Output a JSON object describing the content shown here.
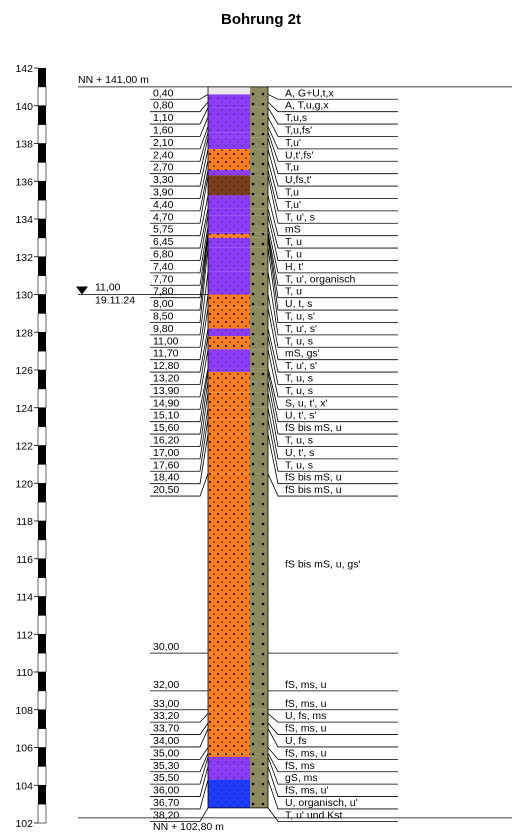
{
  "title": "Bohrung 2t",
  "top": {
    "value": 141,
    "label": "NN + 141,00 m"
  },
  "bottom_label": "NN + 102,80 m",
  "axis": {
    "lim": [
      102,
      142
    ],
    "ticks": [
      102,
      104,
      106,
      108,
      110,
      112,
      114,
      116,
      118,
      120,
      122,
      124,
      126,
      128,
      130,
      132,
      134,
      136,
      138,
      140,
      142
    ]
  },
  "water_level": {
    "depth": {
      "value": 11,
      "label": "11,00"
    },
    "date": "19.11.24"
  },
  "layers": [
    {
      "bottom": {
        "value": 0.4,
        "label": "0,40"
      },
      "description": "A, G+U,t,x",
      "color": "#e8e8e8"
    },
    {
      "bottom": {
        "value": 0.8,
        "label": "0,80"
      },
      "description": "A, T,u,g,x",
      "color": "#8b3cf7"
    },
    {
      "bottom": {
        "value": 1.1,
        "label": "1,10"
      },
      "description": "T,u,s",
      "color": "#8b3cf7"
    },
    {
      "bottom": {
        "value": 1.6,
        "label": "1,60"
      },
      "description": "T,u,fs'",
      "color": "#8b3cf7"
    },
    {
      "bottom": {
        "value": 2.1,
        "label": "2,10"
      },
      "description": "T,u'",
      "color": "#8b3cf7"
    },
    {
      "bottom": {
        "value": 2.4,
        "label": "2,40"
      },
      "description": "U,t',fs'",
      "color": "#8b3cf7"
    },
    {
      "bottom": {
        "value": 2.7,
        "label": "2,70"
      },
      "description": "T,u",
      "color": "#8b3cf7"
    },
    {
      "bottom": {
        "value": 3.3,
        "label": "3,30"
      },
      "description": "U,fs,t'",
      "color": "#8b3cf7"
    },
    {
      "bottom": {
        "value": 3.9,
        "label": "3,90"
      },
      "description": "T,u",
      "color": "#ff7f1e"
    },
    {
      "bottom": {
        "value": 4.4,
        "label": "4,40"
      },
      "description": "T,u'",
      "color": "#ff7f1e"
    },
    {
      "bottom": {
        "value": 4.7,
        "label": "4,70"
      },
      "description": "T, u', s",
      "color": "#8b3cf7"
    },
    {
      "bottom": {
        "value": 5.75,
        "label": "5,75"
      },
      "description": "mS",
      "color": "#7a3d1c"
    },
    {
      "bottom": {
        "value": 6.45,
        "label": "6,45"
      },
      "description": "T, u",
      "color": "#8b3cf7"
    },
    {
      "bottom": {
        "value": 6.8,
        "label": "6,80"
      },
      "description": "T, u",
      "color": "#8b3cf7"
    },
    {
      "bottom": {
        "value": 7.4,
        "label": "7,40"
      },
      "description": "H, t'",
      "color": "#8b3cf7"
    },
    {
      "bottom": {
        "value": 7.7,
        "label": "7,70"
      },
      "description": "T, u', organisch",
      "color": "#8b3cf7"
    },
    {
      "bottom": {
        "value": 7.8,
        "label": "7,80"
      },
      "description": "T, u",
      "color": "#8b3cf7"
    },
    {
      "bottom": {
        "value": 8.0,
        "label": "8,00"
      },
      "description": "U, t, s",
      "color": "#ff7f1e"
    },
    {
      "bottom": {
        "value": 8.5,
        "label": "8,50"
      },
      "description": "T, u, s'",
      "color": "#8b3cf7"
    },
    {
      "bottom": {
        "value": 9.8,
        "label": "9,80"
      },
      "description": "T, u', s'",
      "color": "#8b3cf7"
    },
    {
      "bottom": {
        "value": 11.0,
        "label": "11,00"
      },
      "description": "T, u, s",
      "color": "#8b3cf7"
    },
    {
      "bottom": {
        "value": 11.7,
        "label": "11,70"
      },
      "description": "mS, gs'",
      "color": "#ff7f1e"
    },
    {
      "bottom": {
        "value": 12.8,
        "label": "12,80"
      },
      "description": "T, u', s'",
      "color": "#ff7f1e"
    },
    {
      "bottom": {
        "value": 13.2,
        "label": "13,20"
      },
      "description": "T, u, s",
      "color": "#8b3cf7"
    },
    {
      "bottom": {
        "value": 13.9,
        "label": "13,90"
      },
      "description": "T, u, s",
      "color": "#ff7f1e"
    },
    {
      "bottom": {
        "value": 14.9,
        "label": "14,90"
      },
      "description": "S, u, t', x'",
      "color": "#8b3cf7"
    },
    {
      "bottom": {
        "value": 15.1,
        "label": "15,10"
      },
      "description": "U, t', s'",
      "color": "#8b3cf7"
    },
    {
      "bottom": {
        "value": 15.6,
        "label": "15,60"
      },
      "description": "fS bis mS, u",
      "color": "#ff7f1e"
    },
    {
      "bottom": {
        "value": 16.2,
        "label": "16,20"
      },
      "description": "T, u, s",
      "color": "#ff7f1e"
    },
    {
      "bottom": {
        "value": 17.0,
        "label": "17,00"
      },
      "description": "U, t', s",
      "color": "#ff7f1e"
    },
    {
      "bottom": {
        "value": 17.6,
        "label": "17,60"
      },
      "description": "T, u, s",
      "color": "#ff7f1e"
    },
    {
      "bottom": {
        "value": 18.4,
        "label": "18,40"
      },
      "description": "fS bis mS, u",
      "color": "#ff7f1e"
    },
    {
      "bottom": {
        "value": 20.5,
        "label": "20,50"
      },
      "description": "fS bis mS, u",
      "color": "#ff7f1e"
    },
    {
      "bottom": {
        "value": 30.0,
        "label": "30,00"
      },
      "description": "fS bis mS, u, gs'",
      "color": "#ff7f1e"
    },
    {
      "bottom": {
        "value": 32.0,
        "label": "32,00"
      },
      "description": "fS, ms, u",
      "color": "#ff7f1e"
    },
    {
      "bottom": {
        "value": 33.0,
        "label": "33,00"
      },
      "description": "fS, ms, u",
      "color": "#ff7f1e"
    },
    {
      "bottom": {
        "value": 33.2,
        "label": "33,20"
      },
      "description": "U, fs, ms",
      "color": "#ff7f1e"
    },
    {
      "bottom": {
        "value": 33.7,
        "label": "33,70"
      },
      "description": "fS, ms, u",
      "color": "#ff7f1e"
    },
    {
      "bottom": {
        "value": 34.0,
        "label": "34,00"
      },
      "description": "U, fs",
      "color": "#ff7f1e"
    },
    {
      "bottom": {
        "value": 35.0,
        "label": "35,00"
      },
      "description": "fS, ms, u",
      "color": "#ff7f1e"
    },
    {
      "bottom": {
        "value": 35.3,
        "label": "35,30"
      },
      "description": "fS, ms",
      "color": "#ff7f1e"
    },
    {
      "bottom": {
        "value": 35.5,
        "label": "35,50"
      },
      "description": "gS, ms",
      "color": "#ff7f1e"
    },
    {
      "bottom": {
        "value": 36.0,
        "label": "36,00"
      },
      "description": "fS, ms, u'",
      "color": "#8b3cf7"
    },
    {
      "bottom": {
        "value": 36.7,
        "label": "36,70"
      },
      "description": "U, organisch, u'",
      "color": "#8b3cf7"
    },
    {
      "bottom": {
        "value": 38.2,
        "label": "38,20"
      },
      "description": "T, u' und Kst",
      "color": "#1e3cff"
    }
  ]
}
